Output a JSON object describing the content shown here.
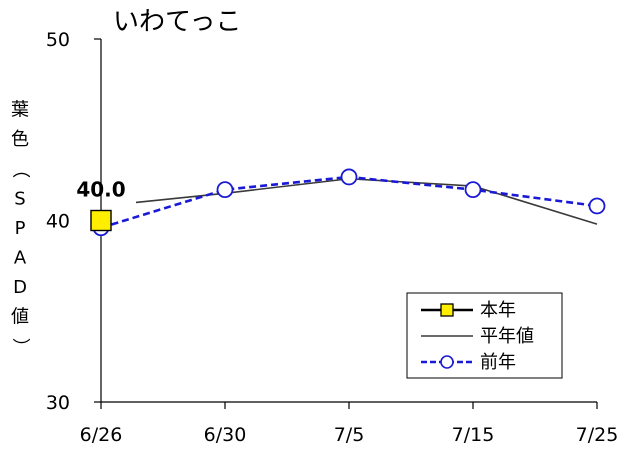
{
  "chart_data": {
    "type": "line",
    "title": "いわてっこ",
    "ylabel": "葉色（SPAD値）",
    "xlabel": "",
    "categories": [
      "6/26",
      "6/30",
      "7/5",
      "7/15",
      "7/25"
    ],
    "ylim": [
      30,
      50
    ],
    "yticks": [
      30,
      40,
      50
    ],
    "grid": false,
    "legend_position": "bottom-right",
    "series": [
      {
        "name": "本年",
        "values": [
          40.0,
          null,
          null,
          null,
          null
        ],
        "color": "#000000",
        "marker": "square",
        "marker_fill": "#ffee00"
      },
      {
        "name": "平年値",
        "values": [
          40.8,
          41.5,
          42.3,
          41.9,
          39.8
        ],
        "color": "#3a3a3a",
        "marker": "none"
      },
      {
        "name": "前年",
        "values": [
          39.6,
          41.7,
          42.4,
          41.7,
          40.8
        ],
        "color": "#1a1ad6",
        "marker": "circle",
        "dashed": true
      }
    ],
    "annotations": [
      {
        "text": "40.0",
        "category": "6/26",
        "series": "本年"
      }
    ]
  }
}
